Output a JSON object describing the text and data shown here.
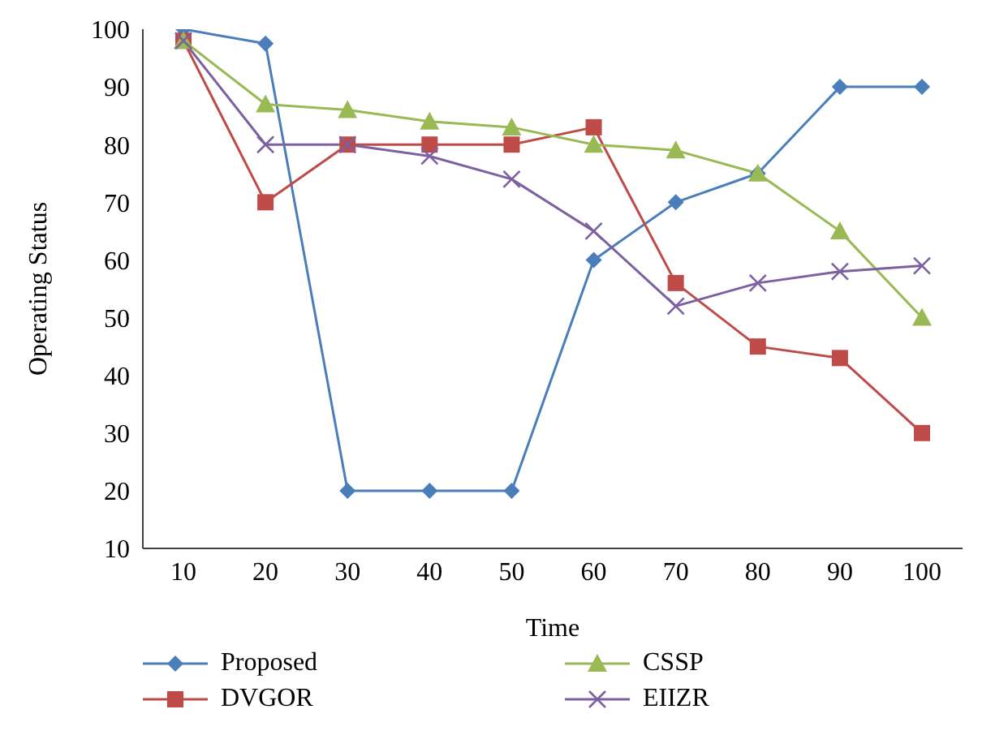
{
  "chart_data": {
    "type": "line",
    "xlabel": "Time",
    "ylabel": "Operating Status",
    "categories": [
      "10",
      "20",
      "30",
      "40",
      "50",
      "60",
      "70",
      "80",
      "90",
      "100"
    ],
    "series": [
      {
        "name": "Proposed",
        "color": "#4a7ebb",
        "marker": "diamond",
        "values": [
          100,
          97.5,
          20,
          20,
          20,
          60,
          70,
          75,
          90,
          90
        ]
      },
      {
        "name": "DVGOR",
        "color": "#be4b48",
        "marker": "square",
        "values": [
          98,
          70,
          80,
          80,
          80,
          83,
          56,
          45,
          43,
          30
        ]
      },
      {
        "name": "CSSP",
        "color": "#98b954",
        "marker": "triangle",
        "values": [
          98,
          87,
          86,
          84,
          83,
          80,
          79,
          75,
          65,
          50
        ]
      },
      {
        "name": "EIIZR",
        "color": "#7d60a0",
        "marker": "cross",
        "values": [
          98,
          80,
          80,
          78,
          74,
          65,
          52,
          56,
          58,
          59
        ]
      }
    ],
    "ylim": [
      10,
      100
    ],
    "yticks": [
      10,
      20,
      30,
      40,
      50,
      60,
      70,
      80,
      90,
      100
    ],
    "legend": "bottom",
    "line_style": "solid"
  }
}
